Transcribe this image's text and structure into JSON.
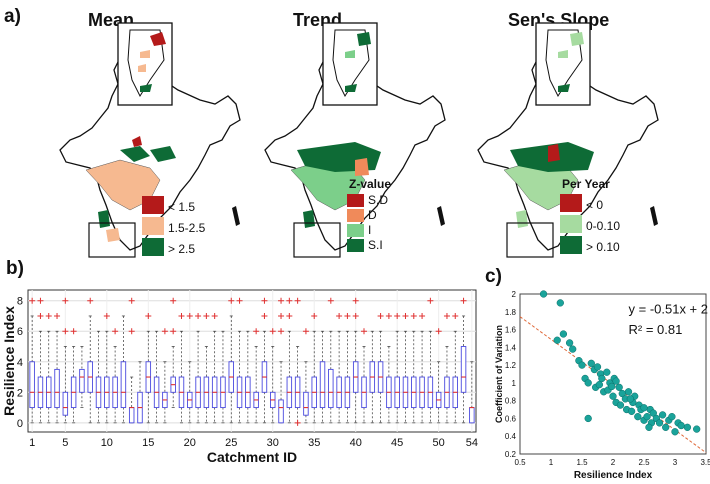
{
  "panel_labels": {
    "a": "a)",
    "b": "b)",
    "c": "c)"
  },
  "maps": [
    {
      "title": "Mean",
      "legend_title": "",
      "legend": [
        {
          "label": "< 1.5",
          "color": "#b41a1a"
        },
        {
          "label": "1.5-2.5",
          "color": "#f6b990"
        },
        {
          "label": "> 2.5",
          "color": "#0e6b36"
        }
      ]
    },
    {
      "title": "Trend",
      "legend_title": "Z-value",
      "legend": [
        {
          "label": "S.D",
          "color": "#b41a1a"
        },
        {
          "label": "D",
          "color": "#f08a5a"
        },
        {
          "label": "I",
          "color": "#7ccf8a"
        },
        {
          "label": "S.I",
          "color": "#0e6b36"
        }
      ]
    },
    {
      "title": "Sen's Slope",
      "legend_title": "Per Year",
      "legend": [
        {
          "label": "< 0",
          "color": "#b41a1a"
        },
        {
          "label": "0-0.10",
          "color": "#a6dba0"
        },
        {
          "label": "> 0.10",
          "color": "#0e6b36"
        }
      ]
    }
  ],
  "chart_data": [
    {
      "type": "box",
      "title": "",
      "xlabel": "Catchment ID",
      "ylabel": "Resilience Index",
      "ylim": [
        -0.6,
        8.7
      ],
      "xlim": [
        0.5,
        54.5
      ],
      "yticks": [
        0,
        2,
        4,
        6,
        8
      ],
      "xticks": [
        1,
        5,
        10,
        15,
        20,
        25,
        30,
        35,
        40,
        45,
        50,
        54
      ],
      "grid": true,
      "box_color": "#4a4adf",
      "median_color": "#e03030",
      "outlier_color": "#e03030",
      "series": [
        {
          "id": 1,
          "q1": 1,
          "med": 2,
          "q3": 4,
          "lo": 0,
          "hi": 7,
          "out": [
            8
          ]
        },
        {
          "id": 2,
          "q1": 1,
          "med": 2,
          "q3": 3,
          "lo": 0,
          "hi": 6,
          "out": [
            7,
            8
          ]
        },
        {
          "id": 3,
          "q1": 1,
          "med": 2,
          "q3": 3,
          "lo": 0,
          "hi": 6,
          "out": [
            7
          ]
        },
        {
          "id": 4,
          "q1": 1,
          "med": 2,
          "q3": 3.5,
          "lo": 0,
          "hi": 6,
          "out": [
            7
          ]
        },
        {
          "id": 5,
          "q1": 0.5,
          "med": 1,
          "q3": 2,
          "lo": 0,
          "hi": 5,
          "out": [
            6,
            8
          ]
        },
        {
          "id": 6,
          "q1": 1,
          "med": 2,
          "q3": 3,
          "lo": 0,
          "hi": 5,
          "out": [
            6
          ]
        },
        {
          "id": 7,
          "q1": 2,
          "med": 3,
          "q3": 3.5,
          "lo": 1,
          "hi": 5,
          "out": []
        },
        {
          "id": 8,
          "q1": 2,
          "med": 3,
          "q3": 4,
          "lo": 0,
          "hi": 7,
          "out": [
            8
          ]
        },
        {
          "id": 9,
          "q1": 1,
          "med": 2,
          "q3": 3,
          "lo": 0,
          "hi": 6,
          "out": []
        },
        {
          "id": 10,
          "q1": 1,
          "med": 2,
          "q3": 3,
          "lo": 0,
          "hi": 6,
          "out": [
            7
          ]
        },
        {
          "id": 11,
          "q1": 1,
          "med": 2,
          "q3": 3,
          "lo": 0,
          "hi": 5,
          "out": [
            6
          ]
        },
        {
          "id": 12,
          "q1": 1,
          "med": 2,
          "q3": 4,
          "lo": 0,
          "hi": 7,
          "out": []
        },
        {
          "id": 13,
          "q1": 0,
          "med": 1,
          "q3": 1,
          "lo": 0,
          "hi": 3,
          "out": [
            6,
            8
          ]
        },
        {
          "id": 14,
          "q1": 0,
          "med": 1,
          "q3": 2,
          "lo": 0,
          "hi": 4,
          "out": []
        },
        {
          "id": 15,
          "q1": 2,
          "med": 3,
          "q3": 4,
          "lo": 0,
          "hi": 6,
          "out": [
            7
          ]
        },
        {
          "id": 16,
          "q1": 1,
          "med": 2,
          "q3": 3,
          "lo": 0,
          "hi": 6,
          "out": []
        },
        {
          "id": 17,
          "q1": 1,
          "med": 1.5,
          "q3": 2,
          "lo": 0,
          "hi": 4,
          "out": [
            6
          ]
        },
        {
          "id": 18,
          "q1": 2,
          "med": 2.5,
          "q3": 3,
          "lo": 1,
          "hi": 5,
          "out": [
            6,
            8
          ]
        },
        {
          "id": 19,
          "q1": 1,
          "med": 2,
          "q3": 3,
          "lo": 0,
          "hi": 6,
          "out": [
            7
          ]
        },
        {
          "id": 20,
          "q1": 1,
          "med": 1.5,
          "q3": 2,
          "lo": 0,
          "hi": 4,
          "out": [
            7
          ]
        },
        {
          "id": 21,
          "q1": 1,
          "med": 2,
          "q3": 3,
          "lo": 0,
          "hi": 6,
          "out": [
            7
          ]
        },
        {
          "id": 22,
          "q1": 1,
          "med": 2,
          "q3": 3,
          "lo": 0,
          "hi": 5,
          "out": [
            7
          ]
        },
        {
          "id": 23,
          "q1": 1,
          "med": 2,
          "q3": 3,
          "lo": 0,
          "hi": 6,
          "out": [
            7
          ]
        },
        {
          "id": 24,
          "q1": 1,
          "med": 2,
          "q3": 3,
          "lo": 0,
          "hi": 6,
          "out": []
        },
        {
          "id": 25,
          "q1": 2,
          "med": 3,
          "q3": 4,
          "lo": 0,
          "hi": 7,
          "out": [
            8
          ]
        },
        {
          "id": 26,
          "q1": 1,
          "med": 2,
          "q3": 3,
          "lo": 0,
          "hi": 6,
          "out": [
            8
          ]
        },
        {
          "id": 27,
          "q1": 1,
          "med": 2,
          "q3": 3,
          "lo": 0,
          "hi": 6,
          "out": []
        },
        {
          "id": 28,
          "q1": 1,
          "med": 1.5,
          "q3": 2,
          "lo": 0,
          "hi": 5,
          "out": [
            6
          ]
        },
        {
          "id": 29,
          "q1": 2,
          "med": 3,
          "q3": 4,
          "lo": 0,
          "hi": 6,
          "out": [
            7,
            8
          ]
        },
        {
          "id": 30,
          "q1": 1,
          "med": 1.5,
          "q3": 2,
          "lo": 0,
          "hi": 5,
          "out": [
            6
          ]
        },
        {
          "id": 31,
          "q1": 0,
          "med": 1,
          "q3": 1.5,
          "lo": 0,
          "hi": 4,
          "out": [
            6,
            7,
            8
          ]
        },
        {
          "id": 32,
          "q1": 1,
          "med": 2,
          "q3": 3,
          "lo": 0,
          "hi": 6,
          "out": [
            7,
            8
          ]
        },
        {
          "id": 33,
          "q1": 1,
          "med": 2,
          "q3": 3,
          "lo": 0,
          "hi": 5,
          "out": [
            0,
            8
          ]
        },
        {
          "id": 34,
          "q1": 0.5,
          "med": 1,
          "q3": 2,
          "lo": 0,
          "hi": 4,
          "out": [
            6
          ]
        },
        {
          "id": 35,
          "q1": 1,
          "med": 2,
          "q3": 3,
          "lo": 0,
          "hi": 6,
          "out": [
            7
          ]
        },
        {
          "id": 36,
          "q1": 1,
          "med": 2,
          "q3": 4,
          "lo": 0,
          "hi": 6,
          "out": []
        },
        {
          "id": 37,
          "q1": 1,
          "med": 2,
          "q3": 3.5,
          "lo": 0,
          "hi": 6,
          "out": [
            8
          ]
        },
        {
          "id": 38,
          "q1": 1,
          "med": 2,
          "q3": 3,
          "lo": 0,
          "hi": 6,
          "out": [
            7
          ]
        },
        {
          "id": 39,
          "q1": 1,
          "med": 2,
          "q3": 3,
          "lo": 0,
          "hi": 6,
          "out": [
            7
          ]
        },
        {
          "id": 40,
          "q1": 2,
          "med": 3,
          "q3": 4,
          "lo": 0,
          "hi": 6,
          "out": [
            7,
            8
          ]
        },
        {
          "id": 41,
          "q1": 1,
          "med": 2,
          "q3": 3,
          "lo": 0,
          "hi": 5,
          "out": [
            6
          ]
        },
        {
          "id": 42,
          "q1": 2,
          "med": 3,
          "q3": 4,
          "lo": 0,
          "hi": 6,
          "out": []
        },
        {
          "id": 43,
          "q1": 2,
          "med": 3,
          "q3": 4,
          "lo": 0,
          "hi": 6,
          "out": [
            7
          ]
        },
        {
          "id": 44,
          "q1": 1,
          "med": 2,
          "q3": 3,
          "lo": 0,
          "hi": 5,
          "out": [
            7
          ]
        },
        {
          "id": 45,
          "q1": 1,
          "med": 2,
          "q3": 3,
          "lo": 0,
          "hi": 6,
          "out": [
            7
          ]
        },
        {
          "id": 46,
          "q1": 1,
          "med": 2,
          "q3": 3,
          "lo": 0,
          "hi": 6,
          "out": [
            7
          ]
        },
        {
          "id": 47,
          "q1": 1,
          "med": 2,
          "q3": 3,
          "lo": 0,
          "hi": 6,
          "out": [
            7
          ]
        },
        {
          "id": 48,
          "q1": 1,
          "med": 2,
          "q3": 3,
          "lo": 0,
          "hi": 6,
          "out": [
            7
          ]
        },
        {
          "id": 49,
          "q1": 1,
          "med": 2,
          "q3": 3,
          "lo": 0,
          "hi": 6,
          "out": [
            8
          ]
        },
        {
          "id": 50,
          "q1": 1,
          "med": 1.5,
          "q3": 2,
          "lo": 0,
          "hi": 4,
          "out": [
            6
          ]
        },
        {
          "id": 51,
          "q1": 1,
          "med": 2,
          "q3": 3,
          "lo": 0,
          "hi": 5,
          "out": [
            7
          ]
        },
        {
          "id": 52,
          "q1": 1,
          "med": 2,
          "q3": 3,
          "lo": 0,
          "hi": 6,
          "out": [
            7
          ]
        },
        {
          "id": 53,
          "q1": 2,
          "med": 3,
          "q3": 5,
          "lo": 0,
          "hi": 7,
          "out": [
            8
          ]
        },
        {
          "id": 54,
          "q1": 0,
          "med": 1,
          "q3": 1,
          "lo": 0,
          "hi": 4,
          "out": []
        }
      ]
    },
    {
      "type": "scatter",
      "title": "",
      "xlabel": "Resilience Index",
      "ylabel": "Coefficient of Variation",
      "xlim": [
        0.5,
        3.5
      ],
      "ylim": [
        0.2,
        2.0
      ],
      "xticks": [
        0.5,
        1,
        1.5,
        2,
        2.5,
        3,
        3.5
      ],
      "yticks": [
        0.2,
        0.4,
        0.6,
        0.8,
        1,
        1.2,
        1.4,
        1.6,
        1.8,
        2
      ],
      "grid": false,
      "point_color": "#1aa39a",
      "trend_color": "#e06a3a",
      "equation": "y = -0.51x + 2",
      "r2": "R² = 0.81",
      "trend": {
        "slope": -0.51,
        "intercept": 2
      },
      "x": [
        0.88,
        1.15,
        1.1,
        1.2,
        1.3,
        1.35,
        1.45,
        1.5,
        1.55,
        1.6,
        1.65,
        1.7,
        1.72,
        1.75,
        1.8,
        1.82,
        1.85,
        1.9,
        1.92,
        1.95,
        2.0,
        2.02,
        2.05,
        2.1,
        2.12,
        2.15,
        2.2,
        2.22,
        2.25,
        2.3,
        2.32,
        2.35,
        2.4,
        2.42,
        2.45,
        2.5,
        2.55,
        2.6,
        2.62,
        2.65,
        2.7,
        2.75,
        2.8,
        2.85,
        2.9,
        2.95,
        3.0,
        3.05,
        3.1,
        3.2,
        3.35,
        1.6,
        1.78,
        2.05,
        2.28,
        2.5,
        1.98,
        2.58
      ],
      "y": [
        2.0,
        1.9,
        1.48,
        1.55,
        1.45,
        1.38,
        1.25,
        1.2,
        1.05,
        1.0,
        1.22,
        1.15,
        0.95,
        1.18,
        1.1,
        1.05,
        0.9,
        1.12,
        0.92,
        1.0,
        0.85,
        1.05,
        0.78,
        0.95,
        0.75,
        0.88,
        0.82,
        0.7,
        0.9,
        0.68,
        0.78,
        0.85,
        0.62,
        0.75,
        0.7,
        0.58,
        0.62,
        0.7,
        0.55,
        0.66,
        0.6,
        0.55,
        0.64,
        0.5,
        0.58,
        0.62,
        0.45,
        0.55,
        0.52,
        0.5,
        0.48,
        0.6,
        0.98,
        1.02,
        0.82,
        0.72,
        0.96,
        0.5
      ]
    }
  ]
}
